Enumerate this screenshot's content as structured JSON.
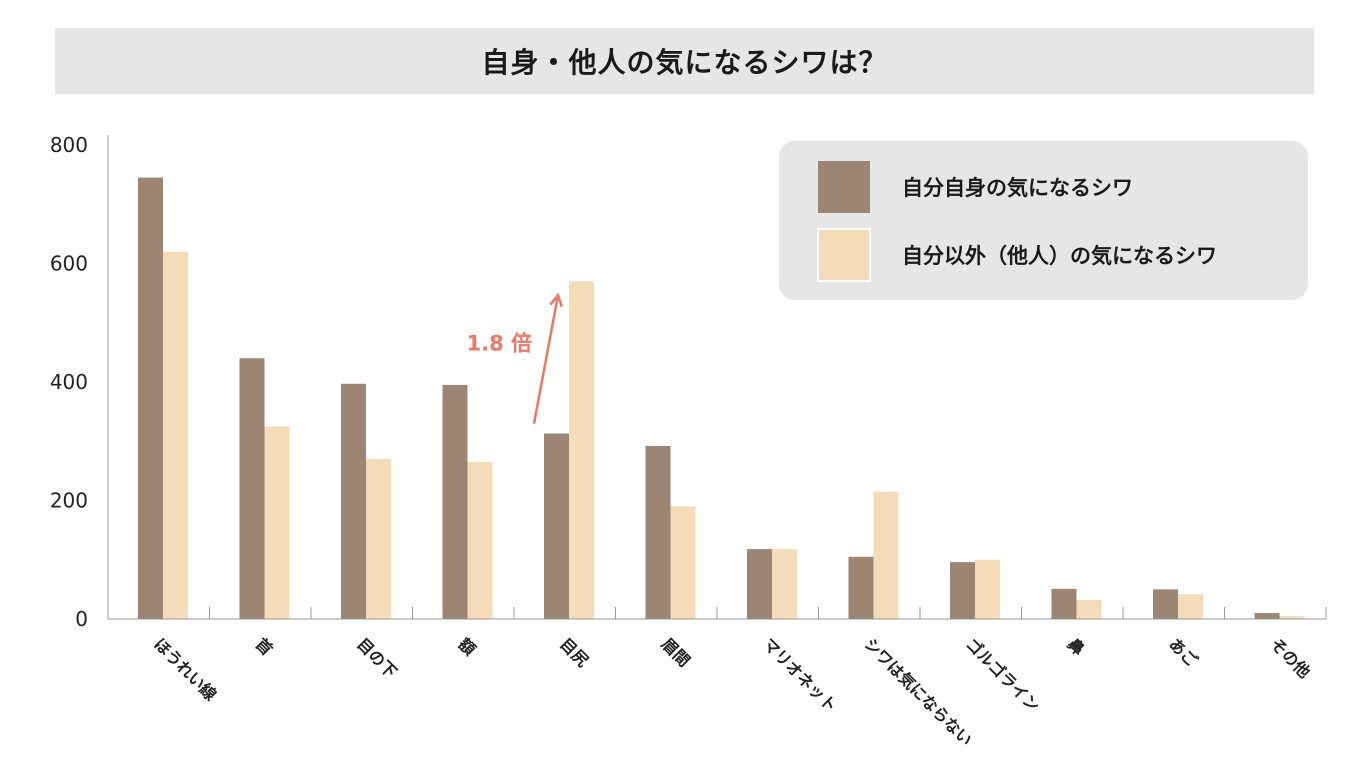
{
  "title": "自身・他人の気になるシワは？",
  "colors": {
    "self": "#9c8572",
    "other": "#f5dcb8",
    "axis": "#999999",
    "legend_bg": "#e6e6e6",
    "annotation": "#ee7663"
  },
  "chart_data": {
    "type": "bar",
    "title": "",
    "xlabel": "",
    "ylabel": "",
    "ylim": [
      0,
      800
    ],
    "yticks": [
      "0",
      "200",
      "400",
      "600",
      "800"
    ],
    "categories": [
      "ほうれい線",
      "首",
      "目の下",
      "額",
      "目尻",
      "眉間",
      "マリオネット",
      "シワは気にならない",
      "ゴルゴライン",
      "鼻",
      "あご",
      "その他"
    ],
    "series": [
      {
        "name": "自分自身の気になるシワ",
        "values": [
          745,
          440,
          397,
          395,
          313,
          292,
          118,
          105,
          96,
          51,
          50,
          10
        ]
      },
      {
        "name": "自分以外（他人）の気になるシワ",
        "values": [
          620,
          325,
          270,
          265,
          570,
          190,
          118,
          215,
          100,
          32,
          42,
          5
        ]
      }
    ],
    "legend_position": "top-right",
    "grid": false,
    "annotation": {
      "text": "1.8 倍",
      "category": "目尻"
    }
  }
}
